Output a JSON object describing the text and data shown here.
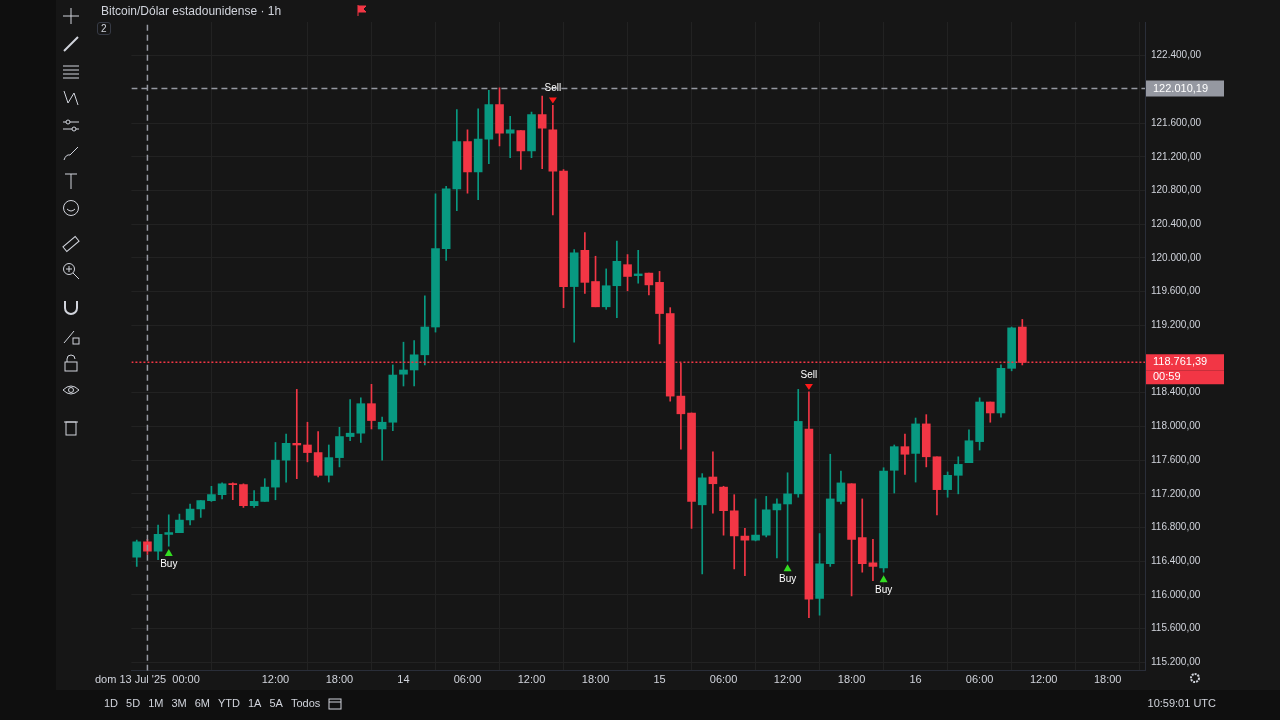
{
  "chart_data": {
    "type": "candlestick",
    "title": "Bitcoin/Dólar estadounidense · 1h",
    "x": [
      "2025-07-12T23:00",
      "2025-07-13T00:00",
      "2025-07-13T01:00",
      "2025-07-13T02:00",
      "2025-07-13T03:00",
      "2025-07-13T04:00",
      "2025-07-13T05:00",
      "2025-07-13T06:00",
      "2025-07-13T07:00",
      "2025-07-13T08:00",
      "2025-07-13T09:00",
      "2025-07-13T10:00",
      "2025-07-13T11:00",
      "2025-07-13T12:00",
      "2025-07-13T13:00",
      "2025-07-13T14:00",
      "2025-07-13T15:00",
      "2025-07-13T16:00",
      "2025-07-13T17:00",
      "2025-07-13T18:00",
      "2025-07-13T19:00",
      "2025-07-13T20:00",
      "2025-07-13T21:00",
      "2025-07-13T22:00",
      "2025-07-13T23:00",
      "2025-07-14T00:00",
      "2025-07-14T01:00",
      "2025-07-14T02:00",
      "2025-07-14T03:00",
      "2025-07-14T04:00",
      "2025-07-14T05:00",
      "2025-07-14T06:00",
      "2025-07-14T07:00",
      "2025-07-14T08:00",
      "2025-07-14T09:00",
      "2025-07-14T10:00",
      "2025-07-14T11:00",
      "2025-07-14T12:00",
      "2025-07-14T13:00",
      "2025-07-14T14:00",
      "2025-07-14T15:00",
      "2025-07-14T16:00",
      "2025-07-14T17:00",
      "2025-07-14T18:00",
      "2025-07-14T19:00",
      "2025-07-14T20:00",
      "2025-07-14T21:00",
      "2025-07-14T22:00",
      "2025-07-14T23:00",
      "2025-07-15T00:00",
      "2025-07-15T01:00",
      "2025-07-15T02:00",
      "2025-07-15T03:00",
      "2025-07-15T04:00",
      "2025-07-15T05:00",
      "2025-07-15T06:00",
      "2025-07-15T07:00",
      "2025-07-15T08:00",
      "2025-07-15T09:00",
      "2025-07-15T10:00",
      "2025-07-15T11:00",
      "2025-07-15T12:00",
      "2025-07-15T13:00",
      "2025-07-15T14:00",
      "2025-07-15T15:00",
      "2025-07-15T16:00",
      "2025-07-15T17:00",
      "2025-07-15T18:00",
      "2025-07-15T19:00",
      "2025-07-15T20:00",
      "2025-07-15T21:00",
      "2025-07-15T22:00",
      "2025-07-15T23:00",
      "2025-07-16T00:00",
      "2025-07-16T01:00",
      "2025-07-16T02:00",
      "2025-07-16T03:00",
      "2025-07-16T04:00",
      "2025-07-16T05:00",
      "2025-07-16T06:00",
      "2025-07-16T07:00",
      "2025-07-16T08:00",
      "2025-07-16T09:00",
      "2025-07-16T10:00"
    ],
    "ohlc": [
      [
        116450,
        116650,
        116340,
        116630
      ],
      [
        116630,
        116660,
        116480,
        116520
      ],
      [
        116520,
        116830,
        116420,
        116720
      ],
      [
        116720,
        116950,
        116580,
        116740
      ],
      [
        116740,
        116960,
        116740,
        116890
      ],
      [
        116890,
        117080,
        116830,
        117020
      ],
      [
        117020,
        117120,
        116920,
        117120
      ],
      [
        117120,
        117290,
        117110,
        117190
      ],
      [
        117190,
        117330,
        117140,
        117320
      ],
      [
        117320,
        117330,
        117130,
        117310
      ],
      [
        117310,
        117320,
        117040,
        117060
      ],
      [
        117060,
        117240,
        117040,
        117110
      ],
      [
        117110,
        117380,
        117110,
        117280
      ],
      [
        117280,
        117810,
        117130,
        117600
      ],
      [
        117600,
        117910,
        117340,
        117800
      ],
      [
        117800,
        118440,
        117380,
        117780
      ],
      [
        117780,
        118050,
        117580,
        117690
      ],
      [
        117690,
        117940,
        117400,
        117420
      ],
      [
        117420,
        117780,
        117340,
        117630
      ],
      [
        117630,
        117990,
        117520,
        117880
      ],
      [
        117880,
        118320,
        117830,
        117920
      ],
      [
        117920,
        118340,
        117810,
        118270
      ],
      [
        118270,
        118500,
        117970,
        118070
      ],
      [
        117970,
        118110,
        117600,
        118050
      ],
      [
        118050,
        118730,
        117950,
        118610
      ],
      [
        118620,
        119000,
        118480,
        118670
      ],
      [
        118670,
        119020,
        118480,
        118850
      ],
      [
        118850,
        119550,
        118730,
        119180
      ],
      [
        119180,
        120760,
        119120,
        120110
      ],
      [
        120110,
        120850,
        119970,
        120820
      ],
      [
        120820,
        121760,
        120560,
        121380
      ],
      [
        121380,
        121520,
        120770,
        121020
      ],
      [
        121020,
        121770,
        120690,
        121410
      ],
      [
        121410,
        121990,
        121120,
        121820
      ],
      [
        121820,
        122020,
        121330,
        121480
      ],
      [
        121480,
        121680,
        121190,
        121520
      ],
      [
        121510,
        121510,
        121050,
        121270
      ],
      [
        121270,
        121730,
        121190,
        121700
      ],
      [
        121700,
        121920,
        121060,
        121540
      ],
      [
        121520,
        121810,
        120510,
        121030
      ],
      [
        121030,
        121050,
        119410,
        119660
      ],
      [
        119660,
        120100,
        119000,
        120060
      ],
      [
        120090,
        120300,
        119580,
        119710
      ],
      [
        119720,
        120020,
        119420,
        119420
      ],
      [
        119420,
        119870,
        119390,
        119670
      ],
      [
        119670,
        120200,
        119290,
        119960
      ],
      [
        119920,
        120040,
        119610,
        119780
      ],
      [
        119790,
        120090,
        119700,
        119810
      ],
      [
        119820,
        119820,
        119560,
        119680
      ],
      [
        119710,
        119840,
        118980,
        119340
      ],
      [
        119340,
        119410,
        118300,
        118360
      ],
      [
        118360,
        118750,
        117730,
        118150
      ],
      [
        118160,
        118160,
        116790,
        117110
      ],
      [
        117070,
        117440,
        116250,
        117390
      ],
      [
        117400,
        117700,
        116970,
        117320
      ],
      [
        117280,
        117290,
        116710,
        117000
      ],
      [
        117000,
        117190,
        116310,
        116700
      ],
      [
        116700,
        116790,
        116230,
        116650
      ],
      [
        116650,
        117140,
        116640,
        116710
      ],
      [
        116710,
        117170,
        116690,
        117010
      ],
      [
        117010,
        117140,
        116440,
        117080
      ],
      [
        117080,
        117450,
        116400,
        117200
      ],
      [
        117200,
        118440,
        117160,
        118060
      ],
      [
        117970,
        118410,
        115730,
        115950
      ],
      [
        115960,
        116730,
        115760,
        116370
      ],
      [
        116370,
        117670,
        116340,
        117140
      ],
      [
        117110,
        117470,
        117080,
        117330
      ],
      [
        117320,
        117320,
        115990,
        116660
      ],
      [
        116680,
        117140,
        116270,
        116370
      ],
      [
        116380,
        116660,
        116170,
        116340
      ],
      [
        116320,
        117510,
        116270,
        117470
      ],
      [
        117480,
        117780,
        117210,
        117760
      ],
      [
        117760,
        117910,
        117430,
        117670
      ],
      [
        117680,
        118100,
        117340,
        118030
      ],
      [
        118030,
        118140,
        117520,
        117640
      ],
      [
        117640,
        117640,
        116950,
        117250
      ],
      [
        117250,
        117460,
        117160,
        117420
      ],
      [
        117420,
        117640,
        117200,
        117550
      ],
      [
        117570,
        117960,
        117570,
        117830
      ],
      [
        117820,
        118340,
        117720,
        118290
      ],
      [
        118290,
        118290,
        118050,
        118160
      ],
      [
        118160,
        118730,
        118110,
        118690
      ],
      [
        118690,
        119180,
        118660,
        119170
      ],
      [
        119180,
        119270,
        118730,
        118760
      ]
    ],
    "colors": [
      "#089981",
      "#f23645",
      "#089981",
      "#089981",
      "#089981",
      "#089981",
      "#089981",
      "#089981",
      "#089981",
      "#f23645",
      "#f23645",
      "#089981",
      "#089981",
      "#089981",
      "#089981",
      "#f23645",
      "#f23645",
      "#f23645",
      "#089981",
      "#089981",
      "#089981",
      "#089981",
      "#f23645",
      "#089981",
      "#089981",
      "#089981",
      "#089981",
      "#089981",
      "#089981",
      "#089981",
      "#089981",
      "#f23645",
      "#089981",
      "#089981",
      "#f23645",
      "#089981",
      "#f23645",
      "#089981",
      "#f23645",
      "#f23645",
      "#f23645",
      "#089981",
      "#f23645",
      "#f23645",
      "#089981",
      "#089981",
      "#f23645",
      "#089981",
      "#f23645",
      "#f23645",
      "#f23645",
      "#f23645",
      "#f23645",
      "#089981",
      "#f23645",
      "#f23645",
      "#f23645",
      "#f23645",
      "#089981",
      "#089981",
      "#089981",
      "#089981",
      "#089981",
      "#f23645",
      "#089981",
      "#089981",
      "#089981",
      "#f23645",
      "#f23645",
      "#f23645",
      "#089981",
      "#089981",
      "#f23645",
      "#089981",
      "#f23645",
      "#f23645",
      "#089981",
      "#089981",
      "#089981",
      "#089981",
      "#f23645",
      "#089981",
      "#089981",
      "#f23645"
    ],
    "xlim": [
      "2025-07-12T22:30",
      "2025-07-16T21:30"
    ],
    "xticks": [
      {
        "value": "2025-07-13T00:00",
        "label": "dom 13 Jul '25  00:00"
      },
      {
        "value": "2025-07-13T12:00",
        "label": "12:00"
      },
      {
        "value": "2025-07-13T18:00",
        "label": "18:00"
      },
      {
        "value": "2025-07-14T00:00",
        "label": "14"
      },
      {
        "value": "2025-07-14T06:00",
        "label": "06:00"
      },
      {
        "value": "2025-07-14T12:00",
        "label": "12:00"
      },
      {
        "value": "2025-07-14T18:00",
        "label": "18:00"
      },
      {
        "value": "2025-07-15T00:00",
        "label": "15"
      },
      {
        "value": "2025-07-15T06:00",
        "label": "06:00"
      },
      {
        "value": "2025-07-15T12:00",
        "label": "12:00"
      },
      {
        "value": "2025-07-15T18:00",
        "label": "18:00"
      },
      {
        "value": "2025-07-16T00:00",
        "label": "16"
      },
      {
        "value": "2025-07-16T06:00",
        "label": "06:00"
      },
      {
        "value": "2025-07-16T12:00",
        "label": "12:00"
      },
      {
        "value": "2025-07-16T18:00",
        "label": "18:00"
      }
    ],
    "ylim": [
      115100,
      122800
    ],
    "yticks": [
      {
        "value": 115200,
        "label": "115.200,00"
      },
      {
        "value": 115600,
        "label": "115.600,00"
      },
      {
        "value": 116000,
        "label": "116.000,00"
      },
      {
        "value": 116400,
        "label": "116.400,00"
      },
      {
        "value": 116800,
        "label": "116.800,00"
      },
      {
        "value": 117200,
        "label": "117.200,00"
      },
      {
        "value": 117600,
        "label": "117.600,00"
      },
      {
        "value": 118000,
        "label": "118.000,00"
      },
      {
        "value": 118400,
        "label": "118.400,00"
      },
      {
        "value": 119200,
        "label": "119.200,00"
      },
      {
        "value": 119600,
        "label": "119.600,00"
      },
      {
        "value": 120000,
        "label": "120.000,00"
      },
      {
        "value": 120400,
        "label": "120.400,00"
      },
      {
        "value": 120800,
        "label": "120.800,00"
      },
      {
        "value": 121200,
        "label": "121.200,00"
      },
      {
        "value": 121600,
        "label": "121.600,00"
      },
      {
        "value": 122400,
        "label": "122.400,00"
      }
    ],
    "grid": true,
    "ref_lines": [
      {
        "axis": "y",
        "value": 122010.19,
        "label": "122.010,19",
        "color": "#9598a1",
        "line_style": "dashed"
      },
      {
        "axis": "y",
        "value": 118761.39,
        "label": "118.761,39",
        "color": "#f23645",
        "line_style": "dotted"
      },
      {
        "axis": "x",
        "value": "2025-07-13T00:00",
        "color": "#9598a1",
        "line_style": "dashed"
      }
    ],
    "annotations": [
      {
        "text": "Buy",
        "x": "2025-07-13T02:00",
        "y": 116580
      },
      {
        "text": "Sell",
        "x": "2025-07-14T14:00",
        "y": 121810
      },
      {
        "text": "Buy",
        "x": "2025-07-15T12:00",
        "y": 116400
      },
      {
        "text": "Sell",
        "x": "2025-07-15T14:00",
        "y": 118410
      },
      {
        "text": "Buy",
        "x": "2025-07-15T21:00",
        "y": 116270
      },
      "2",
      "00:59",
      "1D",
      "5D",
      "1M",
      "3M",
      "6M",
      "YTD",
      "1A",
      "5A",
      "Todos",
      "10:59:01 UTC"
    ]
  }
}
